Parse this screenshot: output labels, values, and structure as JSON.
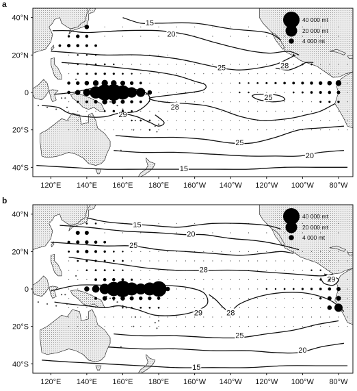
{
  "panels": [
    {
      "label": "a",
      "lat_labels": [
        {
          "text": "40°N",
          "lat": 40
        },
        {
          "text": "20°N",
          "lat": 20
        },
        {
          "text": "0",
          "lat": 0
        },
        {
          "text": "20°S",
          "lat": -20
        },
        {
          "text": "40°S",
          "lat": -40
        }
      ],
      "lon_labels": [
        "120°E",
        "140°E",
        "160°E",
        "180°E",
        "160°W",
        "140°W",
        "120°W",
        "100°W",
        "80°W"
      ],
      "legend": [
        {
          "label": "40 000 mt",
          "value": 40000
        },
        {
          "label": "20 000 mt",
          "value": 20000
        },
        {
          "label": "4 000 mt",
          "value": 4000
        }
      ],
      "contour_labels": [
        {
          "text": "15",
          "lon": 175,
          "lat": 37
        },
        {
          "text": "20",
          "lon": 187,
          "lat": 31
        },
        {
          "text": "25",
          "lon": 215,
          "lat": 13
        },
        {
          "text": "28",
          "lon": 250,
          "lat": 14
        },
        {
          "text": "25",
          "lon": 241,
          "lat": -3
        },
        {
          "text": "28",
          "lon": 189,
          "lat": -8
        },
        {
          "text": "29",
          "lon": 160,
          "lat": -12
        },
        {
          "text": "25",
          "lon": 225,
          "lat": -27
        },
        {
          "text": "20",
          "lon": 264,
          "lat": -34
        },
        {
          "text": "15",
          "lon": 194,
          "lat": -41
        }
      ],
      "catch": [
        {
          "lon": 155,
          "lat": 0,
          "mt": 40000
        },
        {
          "lon": 150,
          "lat": 0,
          "mt": 38000
        },
        {
          "lon": 160,
          "lat": 0,
          "mt": 30000
        },
        {
          "lon": 145,
          "lat": 0,
          "mt": 22000
        },
        {
          "lon": 165,
          "lat": 0,
          "mt": 16000
        },
        {
          "lon": 170,
          "lat": 0,
          "mt": 12000
        },
        {
          "lon": 140,
          "lat": 0,
          "mt": 8000
        },
        {
          "lon": 135,
          "lat": 0,
          "mt": 4000
        },
        {
          "lon": 175,
          "lat": 0,
          "mt": 3000
        },
        {
          "lon": 150,
          "lat": 5,
          "mt": 6000
        },
        {
          "lon": 155,
          "lat": 5,
          "mt": 5000
        },
        {
          "lon": 145,
          "lat": 5,
          "mt": 5000
        },
        {
          "lon": 160,
          "lat": 5,
          "mt": 3500
        },
        {
          "lon": 140,
          "lat": 5,
          "mt": 3000
        },
        {
          "lon": 165,
          "lat": 5,
          "mt": 2000
        },
        {
          "lon": 150,
          "lat": -5,
          "mt": 4000
        },
        {
          "lon": 155,
          "lat": -5,
          "mt": 3000
        },
        {
          "lon": 160,
          "lat": -5,
          "mt": 2500
        },
        {
          "lon": 145,
          "lat": -5,
          "mt": 2000
        },
        {
          "lon": 165,
          "lat": -5,
          "mt": 1500
        },
        {
          "lon": 170,
          "lat": -5,
          "mt": 1000
        },
        {
          "lon": 140,
          "lat": 35,
          "mt": 3000
        },
        {
          "lon": 135,
          "lat": 30,
          "mt": 2000
        },
        {
          "lon": 140,
          "lat": 30,
          "mt": 1500
        },
        {
          "lon": 130,
          "lat": 25,
          "mt": 1800
        },
        {
          "lon": 135,
          "lat": 25,
          "mt": 1500
        },
        {
          "lon": 140,
          "lat": 25,
          "mt": 1200
        },
        {
          "lon": 125,
          "lat": 25,
          "mt": 1000
        },
        {
          "lon": 145,
          "lat": 25,
          "mt": 1000
        },
        {
          "lon": 130,
          "lat": 30,
          "mt": 800
        },
        {
          "lon": 135,
          "lat": 20,
          "mt": 400
        },
        {
          "lon": 140,
          "lat": 20,
          "mt": 400
        },
        {
          "lon": 145,
          "lat": 20,
          "mt": 400
        },
        {
          "lon": 135,
          "lat": 15,
          "mt": 400
        },
        {
          "lon": 140,
          "lat": 15,
          "mt": 500
        },
        {
          "lon": 145,
          "lat": 15,
          "mt": 500
        },
        {
          "lon": 150,
          "lat": 15,
          "mt": 500
        },
        {
          "lon": 155,
          "lat": 15,
          "mt": 400
        },
        {
          "lon": 135,
          "lat": 10,
          "mt": 500
        },
        {
          "lon": 140,
          "lat": 10,
          "mt": 700
        },
        {
          "lon": 145,
          "lat": 10,
          "mt": 800
        },
        {
          "lon": 150,
          "lat": 10,
          "mt": 800
        },
        {
          "lon": 155,
          "lat": 10,
          "mt": 700
        },
        {
          "lon": 160,
          "lat": 10,
          "mt": 500
        },
        {
          "lon": 165,
          "lat": 10,
          "mt": 400
        },
        {
          "lon": 130,
          "lat": 5,
          "mt": 1500
        },
        {
          "lon": 135,
          "lat": 5,
          "mt": 2000
        },
        {
          "lon": 170,
          "lat": 5,
          "mt": 1000
        },
        {
          "lon": 130,
          "lat": 0,
          "mt": 1500
        },
        {
          "lon": 135,
          "lat": -5,
          "mt": 800
        },
        {
          "lon": 140,
          "lat": -5,
          "mt": 1200
        },
        {
          "lon": 155,
          "lat": -10,
          "mt": 800
        },
        {
          "lon": 160,
          "lat": -10,
          "mt": 700
        },
        {
          "lon": 165,
          "lat": -10,
          "mt": 500
        },
        {
          "lon": 150,
          "lat": -10,
          "mt": 500
        },
        {
          "lon": 170,
          "lat": -15,
          "mt": 500
        },
        {
          "lon": 175,
          "lat": -15,
          "mt": 500
        },
        {
          "lon": 165,
          "lat": -15,
          "mt": 400
        },
        {
          "lon": 175,
          "lat": -20,
          "mt": 400
        },
        {
          "lon": 225,
          "lat": 5,
          "mt": 400
        },
        {
          "lon": 230,
          "lat": 5,
          "mt": 400
        },
        {
          "lon": 235,
          "lat": 5,
          "mt": 500
        },
        {
          "lon": 240,
          "lat": 5,
          "mt": 600
        },
        {
          "lon": 245,
          "lat": 5,
          "mt": 700
        },
        {
          "lon": 250,
          "lat": 5,
          "mt": 900
        },
        {
          "lon": 255,
          "lat": 5,
          "mt": 1000
        },
        {
          "lon": 260,
          "lat": 5,
          "mt": 1200
        },
        {
          "lon": 265,
          "lat": 5,
          "mt": 1500
        },
        {
          "lon": 270,
          "lat": 5,
          "mt": 2000
        },
        {
          "lon": 275,
          "lat": 5,
          "mt": 3000
        },
        {
          "lon": 280,
          "lat": 5,
          "mt": 5000
        },
        {
          "lon": 225,
          "lat": 0,
          "mt": 400
        },
        {
          "lon": 230,
          "lat": 0,
          "mt": 400
        },
        {
          "lon": 255,
          "lat": 0,
          "mt": 500
        },
        {
          "lon": 260,
          "lat": 0,
          "mt": 600
        },
        {
          "lon": 265,
          "lat": 0,
          "mt": 1000
        },
        {
          "lon": 270,
          "lat": 0,
          "mt": 1200
        },
        {
          "lon": 275,
          "lat": 0,
          "mt": 1500
        },
        {
          "lon": 280,
          "lat": 0,
          "mt": 1800
        },
        {
          "lon": 270,
          "lat": -5,
          "mt": 600
        },
        {
          "lon": 275,
          "lat": -5,
          "mt": 700
        },
        {
          "lon": 280,
          "lat": -5,
          "mt": 800
        },
        {
          "lon": 265,
          "lat": 15,
          "mt": 500
        },
        {
          "lon": 260,
          "lat": 15,
          "mt": 500
        },
        {
          "lon": 255,
          "lat": 20,
          "mt": 400
        }
      ]
    },
    {
      "label": "b",
      "lat_labels": [
        {
          "text": "40°N",
          "lat": 40
        },
        {
          "text": "20°N",
          "lat": 20
        },
        {
          "text": "0",
          "lat": 0
        },
        {
          "text": "20°S",
          "lat": -20
        },
        {
          "text": "40°S",
          "lat": -40
        }
      ],
      "lon_labels": [
        "120°E",
        "140°E",
        "160°E",
        "180°E",
        "160°W",
        "140°W",
        "120°W",
        "100°W",
        "80°W"
      ],
      "legend": [
        {
          "label": "40 000 mt",
          "value": 40000
        },
        {
          "label": "20 000 mt",
          "value": 20000
        },
        {
          "label": "4 000 mt",
          "value": 4000
        }
      ],
      "contour_labels": [
        {
          "text": "15",
          "lon": 168,
          "lat": 34
        },
        {
          "text": "20",
          "lon": 198,
          "lat": 29
        },
        {
          "text": "25",
          "lon": 166,
          "lat": 23
        },
        {
          "text": "28",
          "lon": 205,
          "lat": 10
        },
        {
          "text": "29",
          "lon": 276,
          "lat": 5
        },
        {
          "text": "29",
          "lon": 202,
          "lat": -13
        },
        {
          "text": "28",
          "lon": 220,
          "lat": -13
        },
        {
          "text": "25",
          "lon": 225,
          "lat": -25
        },
        {
          "text": "20",
          "lon": 260,
          "lat": -33
        },
        {
          "text": "15",
          "lon": 201,
          "lat": -42
        }
      ],
      "catch": [
        {
          "lon": 160,
          "lat": 0,
          "mt": 40000
        },
        {
          "lon": 180,
          "lat": 0,
          "mt": 36000
        },
        {
          "lon": 155,
          "lat": 0,
          "mt": 30000
        },
        {
          "lon": 165,
          "lat": 0,
          "mt": 25000
        },
        {
          "lon": 175,
          "lat": 0,
          "mt": 25000
        },
        {
          "lon": 170,
          "lat": 0,
          "mt": 18000
        },
        {
          "lon": 150,
          "lat": 0,
          "mt": 16000
        },
        {
          "lon": 145,
          "lat": 0,
          "mt": 8000
        },
        {
          "lon": 140,
          "lat": 0,
          "mt": 4000
        },
        {
          "lon": 185,
          "lat": 0,
          "mt": 3000
        },
        {
          "lon": 150,
          "lat": -5,
          "mt": 3000
        },
        {
          "lon": 160,
          "lat": -5,
          "mt": 3000
        },
        {
          "lon": 165,
          "lat": -5,
          "mt": 2500
        },
        {
          "lon": 170,
          "lat": -5,
          "mt": 2000
        },
        {
          "lon": 175,
          "lat": -5,
          "mt": 2000
        },
        {
          "lon": 180,
          "lat": -5,
          "mt": 1500
        },
        {
          "lon": 155,
          "lat": -5,
          "mt": 1500
        },
        {
          "lon": 145,
          "lat": -5,
          "mt": 1200
        },
        {
          "lon": 150,
          "lat": 5,
          "mt": 1500
        },
        {
          "lon": 155,
          "lat": 5,
          "mt": 1500
        },
        {
          "lon": 160,
          "lat": 5,
          "mt": 1000
        },
        {
          "lon": 145,
          "lat": 5,
          "mt": 1000
        },
        {
          "lon": 165,
          "lat": 5,
          "mt": 700
        },
        {
          "lon": 135,
          "lat": 30,
          "mt": 2500
        },
        {
          "lon": 140,
          "lat": 30,
          "mt": 2500
        },
        {
          "lon": 135,
          "lat": 25,
          "mt": 1800
        },
        {
          "lon": 140,
          "lat": 25,
          "mt": 2000
        },
        {
          "lon": 145,
          "lat": 25,
          "mt": 1500
        },
        {
          "lon": 150,
          "lat": 25,
          "mt": 1000
        },
        {
          "lon": 130,
          "lat": 25,
          "mt": 1200
        },
        {
          "lon": 140,
          "lat": 20,
          "mt": 1800
        },
        {
          "lon": 135,
          "lat": 20,
          "mt": 1000
        },
        {
          "lon": 145,
          "lat": 20,
          "mt": 1200
        },
        {
          "lon": 150,
          "lat": 20,
          "mt": 800
        },
        {
          "lon": 140,
          "lat": 35,
          "mt": 500
        },
        {
          "lon": 145,
          "lat": 35,
          "mt": 500
        },
        {
          "lon": 135,
          "lat": 15,
          "mt": 500
        },
        {
          "lon": 140,
          "lat": 15,
          "mt": 700
        },
        {
          "lon": 145,
          "lat": 15,
          "mt": 700
        },
        {
          "lon": 150,
          "lat": 15,
          "mt": 600
        },
        {
          "lon": 155,
          "lat": 15,
          "mt": 500
        },
        {
          "lon": 160,
          "lat": 15,
          "mt": 500
        },
        {
          "lon": 140,
          "lat": 10,
          "mt": 500
        },
        {
          "lon": 145,
          "lat": 10,
          "mt": 600
        },
        {
          "lon": 150,
          "lat": 10,
          "mt": 600
        },
        {
          "lon": 155,
          "lat": 10,
          "mt": 500
        },
        {
          "lon": 160,
          "lat": 10,
          "mt": 400
        },
        {
          "lon": 155,
          "lat": 20,
          "mt": 500
        },
        {
          "lon": 160,
          "lat": 20,
          "mt": 400
        },
        {
          "lon": 130,
          "lat": 20,
          "mt": 600
        },
        {
          "lon": 170,
          "lat": -10,
          "mt": 500
        },
        {
          "lon": 175,
          "lat": -10,
          "mt": 500
        },
        {
          "lon": 180,
          "lat": -10,
          "mt": 500
        },
        {
          "lon": 165,
          "lat": -10,
          "mt": 400
        },
        {
          "lon": 160,
          "lat": -10,
          "mt": 400
        },
        {
          "lon": 240,
          "lat": 0,
          "mt": 400
        },
        {
          "lon": 245,
          "lat": 0,
          "mt": 400
        },
        {
          "lon": 250,
          "lat": 0,
          "mt": 500
        },
        {
          "lon": 255,
          "lat": 0,
          "mt": 500
        },
        {
          "lon": 260,
          "lat": 0,
          "mt": 700
        },
        {
          "lon": 265,
          "lat": 0,
          "mt": 800
        },
        {
          "lon": 270,
          "lat": 0,
          "mt": 1000
        },
        {
          "lon": 275,
          "lat": 0,
          "mt": 1500
        },
        {
          "lon": 280,
          "lat": 0,
          "mt": 2500
        },
        {
          "lon": 275,
          "lat": -5,
          "mt": 2500
        },
        {
          "lon": 280,
          "lat": -5,
          "mt": 3500
        },
        {
          "lon": 275,
          "lat": -10,
          "mt": 3000
        },
        {
          "lon": 280,
          "lat": -10,
          "mt": 10000
        },
        {
          "lon": 270,
          "lat": -5,
          "mt": 800
        },
        {
          "lon": 270,
          "lat": 5,
          "mt": 500
        },
        {
          "lon": 275,
          "lat": 5,
          "mt": 600
        },
        {
          "lon": 270,
          "lat": 10,
          "mt": 400
        },
        {
          "lon": 265,
          "lat": 10,
          "mt": 400
        }
      ]
    }
  ]
}
